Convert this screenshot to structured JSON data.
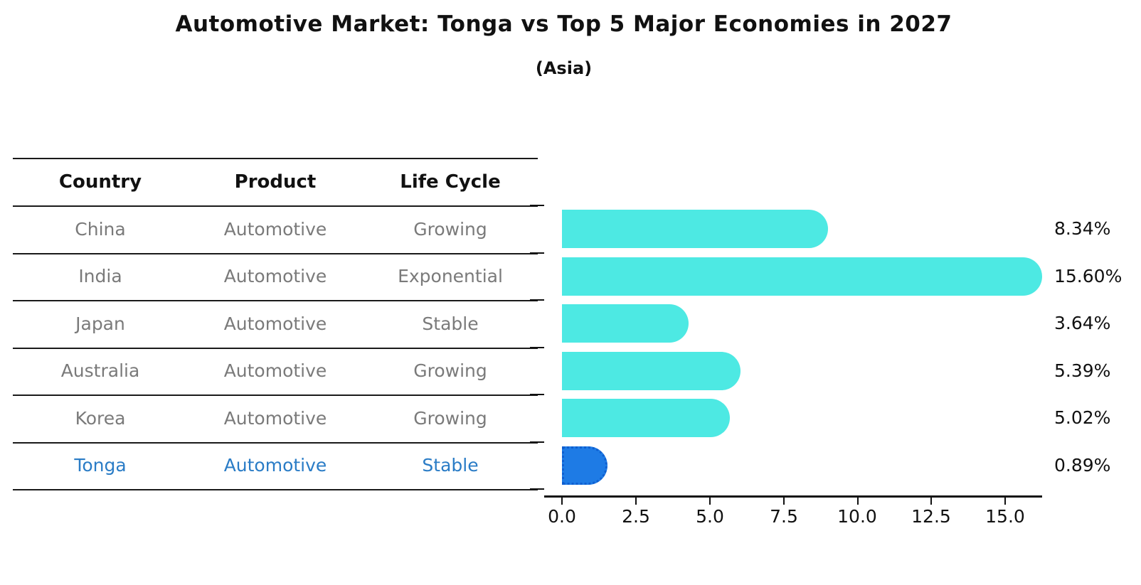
{
  "title": "Automotive Market: Tonga vs Top 5 Major Economies in 2027",
  "subtitle": "(Asia)",
  "table": {
    "headers": [
      "Country",
      "Product",
      "Life Cycle"
    ],
    "rows": [
      {
        "country": "China",
        "product": "Automotive",
        "life_cycle": "Growing"
      },
      {
        "country": "India",
        "product": "Automotive",
        "life_cycle": "Exponential"
      },
      {
        "country": "Japan",
        "product": "Automotive",
        "life_cycle": "Stable"
      },
      {
        "country": "Australia",
        "product": "Automotive",
        "life_cycle": "Growing"
      },
      {
        "country": "Korea",
        "product": "Automotive",
        "life_cycle": "Growing"
      },
      {
        "country": "Tonga",
        "product": "Automotive",
        "life_cycle": "Stable"
      }
    ],
    "highlight_row": "Tonga"
  },
  "chart_data": {
    "type": "bar",
    "orientation": "horizontal",
    "categories": [
      "China",
      "India",
      "Japan",
      "Australia",
      "Korea",
      "Tonga"
    ],
    "values": [
      8.34,
      15.6,
      3.64,
      5.39,
      5.02,
      0.89
    ],
    "value_labels": [
      "8.34%",
      "15.60%",
      "3.64%",
      "5.39%",
      "5.02%",
      "0.89%"
    ],
    "x_ticks": [
      "0.0",
      "2.5",
      "5.0",
      "7.5",
      "10.0",
      "12.5",
      "15.0"
    ],
    "x_tick_values": [
      0,
      2.5,
      5,
      7.5,
      10,
      12.5,
      15
    ],
    "xlim": [
      0,
      16.2
    ],
    "grid": false,
    "legend": null,
    "bar_color": "#4DE9E3",
    "highlight_color": "#1E7BE5",
    "highlight_index": 5
  },
  "colors": {
    "title_text": "#111111",
    "table_body_text": "#7a7a7a",
    "highlight_text": "#2a7cc6",
    "axis": "#111111"
  }
}
